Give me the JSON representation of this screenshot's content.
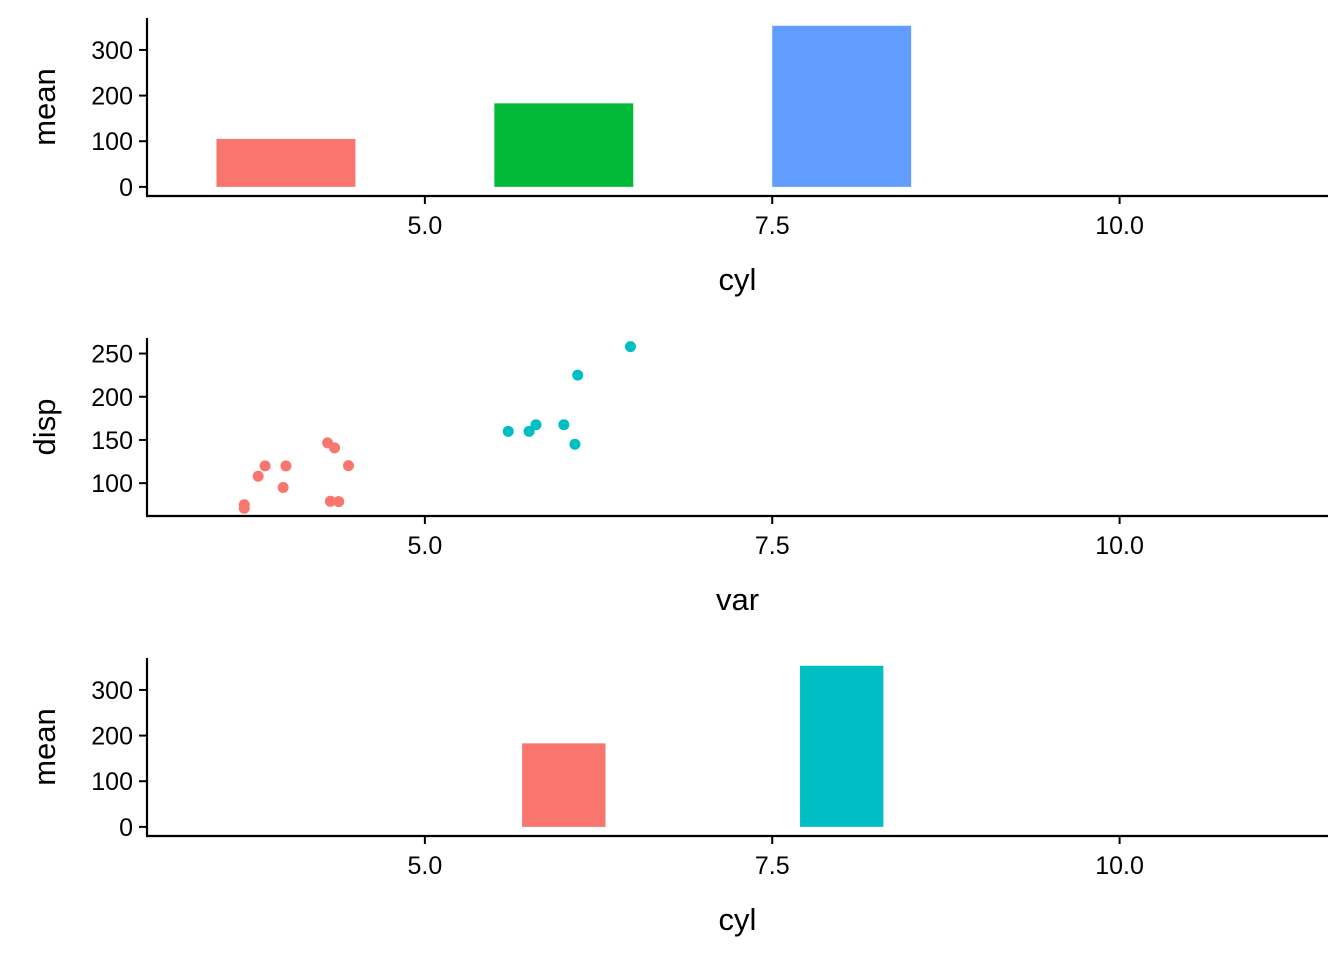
{
  "chart_data": [
    {
      "type": "bar",
      "xlabel": "cyl",
      "ylabel": "mean",
      "xlim": [
        3.0,
        11.5
      ],
      "ylim": [
        -20,
        370
      ],
      "xticks": [
        "5.0",
        "7.5",
        "10.0"
      ],
      "yticks": [
        "0",
        "100",
        "200",
        "300"
      ],
      "bars": [
        {
          "x": 4,
          "width": 1.0,
          "value": 105,
          "color": "#F8766D"
        },
        {
          "x": 6,
          "width": 1.0,
          "value": 183,
          "color": "#00BA38"
        },
        {
          "x": 8,
          "width": 1.0,
          "value": 353,
          "color": "#619CFF"
        }
      ],
      "grid": false,
      "legend": "none"
    },
    {
      "type": "scatter",
      "xlabel": "var",
      "ylabel": "disp",
      "xlim": [
        3.0,
        11.5
      ],
      "ylim": [
        62,
        268
      ],
      "xticks": [
        "5.0",
        "7.5",
        "10.0"
      ],
      "yticks": [
        "100",
        "150",
        "200",
        "250"
      ],
      "series": [
        {
          "color": "#F8766D",
          "points": [
            [
              3.7,
              71
            ],
            [
              3.7,
              75
            ],
            [
              3.8,
              108
            ],
            [
              3.85,
              120
            ],
            [
              4.0,
              120
            ],
            [
              3.98,
              95
            ],
            [
              4.3,
              146.7
            ],
            [
              4.35,
              140.8
            ],
            [
              4.45,
              120.3
            ],
            [
              4.32,
              79
            ],
            [
              4.38,
              78.7
            ]
          ]
        },
        {
          "color": "#00BFC4",
          "points": [
            [
              5.6,
              160
            ],
            [
              5.75,
              160
            ],
            [
              5.8,
              167.6
            ],
            [
              6.0,
              167.6
            ],
            [
              6.08,
              145
            ],
            [
              6.1,
              225
            ],
            [
              6.48,
              258
            ]
          ]
        }
      ],
      "grid": false,
      "legend": "none"
    },
    {
      "type": "bar",
      "xlabel": "cyl",
      "ylabel": "mean",
      "xlim": [
        3.0,
        11.5
      ],
      "ylim": [
        -20,
        370
      ],
      "xticks": [
        "5.0",
        "7.5",
        "10.0"
      ],
      "yticks": [
        "0",
        "100",
        "200",
        "300"
      ],
      "bars": [
        {
          "x": 6,
          "width": 0.6,
          "value": 183,
          "color": "#F8766D"
        },
        {
          "x": 8,
          "width": 0.6,
          "value": 353,
          "color": "#00BFC4"
        }
      ],
      "grid": false,
      "legend": "none"
    }
  ]
}
